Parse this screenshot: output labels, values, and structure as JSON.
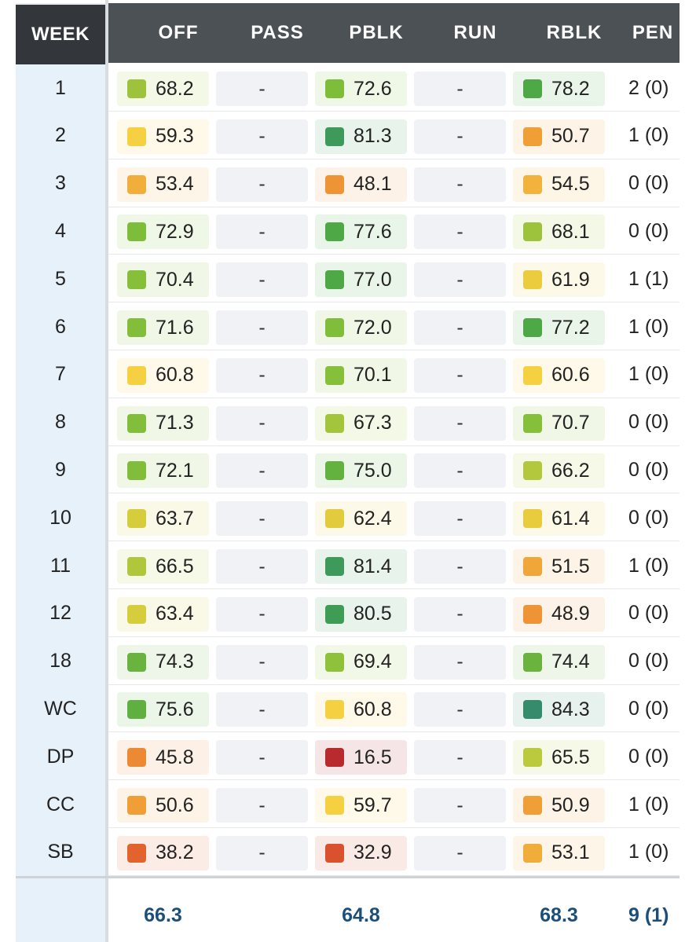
{
  "headers": [
    "WEEK",
    "OFF",
    "PASS",
    "PBLK",
    "RUN",
    "RBLK",
    "PEN"
  ],
  "rows": [
    {
      "week": "1",
      "off": "68.2",
      "off_color": "#9cc33b",
      "pass": "-",
      "pblk": "72.6",
      "pblk_color": "#7dbd3a",
      "run": "-",
      "rblk": "78.2",
      "rblk_color": "#4ea845",
      "pen": "2 (0)"
    },
    {
      "week": "2",
      "off": "59.3",
      "off_color": "#f5d142",
      "pass": "-",
      "pblk": "81.3",
      "pblk_color": "#3d9a5a",
      "run": "-",
      "rblk": "50.7",
      "rblk_color": "#ef9f36",
      "pen": "1 (0)"
    },
    {
      "week": "3",
      "off": "53.4",
      "off_color": "#f1ae3a",
      "pass": "-",
      "pblk": "48.1",
      "pblk_color": "#ef9434",
      "run": "-",
      "rblk": "54.5",
      "rblk_color": "#f2b23b",
      "pen": "0 (0)"
    },
    {
      "week": "4",
      "off": "72.9",
      "off_color": "#7dbd3a",
      "pass": "-",
      "pblk": "77.6",
      "pblk_color": "#4ea845",
      "run": "-",
      "rblk": "68.1",
      "rblk_color": "#9cc33b",
      "pen": "0 (0)"
    },
    {
      "week": "5",
      "off": "70.4",
      "off_color": "#86bf3a",
      "pass": "-",
      "pblk": "77.0",
      "pblk_color": "#4ea845",
      "run": "-",
      "rblk": "61.9",
      "rblk_color": "#eacc3e",
      "pen": "1 (1)"
    },
    {
      "week": "6",
      "off": "71.6",
      "off_color": "#82be3a",
      "pass": "-",
      "pblk": "72.0",
      "pblk_color": "#7fbd3a",
      "run": "-",
      "rblk": "77.2",
      "rblk_color": "#4ea845",
      "pen": "1 (0)"
    },
    {
      "week": "7",
      "off": "60.8",
      "off_color": "#f5d142",
      "pass": "-",
      "pblk": "70.1",
      "pblk_color": "#86bf3a",
      "run": "-",
      "rblk": "60.6",
      "rblk_color": "#f5d142",
      "pen": "1 (0)"
    },
    {
      "week": "8",
      "off": "71.3",
      "off_color": "#82be3a",
      "pass": "-",
      "pblk": "67.3",
      "pblk_color": "#a3c53b",
      "run": "-",
      "rblk": "70.7",
      "rblk_color": "#86bf3a",
      "pen": "0 (0)"
    },
    {
      "week": "9",
      "off": "72.1",
      "off_color": "#7fbd3a",
      "pass": "-",
      "pblk": "75.0",
      "pblk_color": "#63b13f",
      "run": "-",
      "rblk": "66.2",
      "rblk_color": "#b3c83c",
      "pen": "0 (0)"
    },
    {
      "week": "10",
      "off": "63.7",
      "off_color": "#d6cd3c",
      "pass": "-",
      "pblk": "62.4",
      "pblk_color": "#e2cc3d",
      "run": "-",
      "rblk": "61.4",
      "rblk_color": "#e8cc3e",
      "pen": "0 (0)"
    },
    {
      "week": "11",
      "off": "66.5",
      "off_color": "#b0c73c",
      "pass": "-",
      "pblk": "81.4",
      "pblk_color": "#3d9a5a",
      "run": "-",
      "rblk": "51.5",
      "rblk_color": "#f0a638",
      "pen": "1 (0)"
    },
    {
      "week": "12",
      "off": "63.4",
      "off_color": "#d6cd3c",
      "pass": "-",
      "pblk": "80.5",
      "pblk_color": "#3f9c55",
      "run": "-",
      "rblk": "48.9",
      "rblk_color": "#ef9434",
      "pen": "0 (0)"
    },
    {
      "week": "18",
      "off": "74.3",
      "off_color": "#69b33e",
      "pass": "-",
      "pblk": "69.4",
      "pblk_color": "#8fc13a",
      "run": "-",
      "rblk": "74.4",
      "rblk_color": "#69b33e",
      "pen": "0 (0)"
    },
    {
      "week": "WC",
      "off": "75.6",
      "off_color": "#5fb040",
      "pass": "-",
      "pblk": "60.8",
      "pblk_color": "#f5d142",
      "run": "-",
      "rblk": "84.3",
      "rblk_color": "#358b6c",
      "pen": "0 (0)"
    },
    {
      "week": "DP",
      "off": "45.8",
      "off_color": "#ec8a33",
      "pass": "-",
      "pblk": "16.5",
      "pblk_color": "#b82a2e",
      "run": "-",
      "rblk": "65.5",
      "rblk_color": "#bbc93c",
      "pen": "0 (0)"
    },
    {
      "week": "CC",
      "off": "50.6",
      "off_color": "#ef9f36",
      "pass": "-",
      "pblk": "59.7",
      "pblk_color": "#f5d142",
      "run": "-",
      "rblk": "50.9",
      "rblk_color": "#ef9f36",
      "pen": "1 (0)"
    },
    {
      "week": "SB",
      "off": "38.2",
      "off_color": "#e2632e",
      "pass": "-",
      "pblk": "32.9",
      "pblk_color": "#d9512d",
      "run": "-",
      "rblk": "53.1",
      "rblk_color": "#f1ad3a",
      "pen": "1 (0)"
    }
  ],
  "footer": {
    "off": "66.3",
    "pblk": "64.8",
    "rblk": "68.3",
    "pen": "9 (1)"
  }
}
